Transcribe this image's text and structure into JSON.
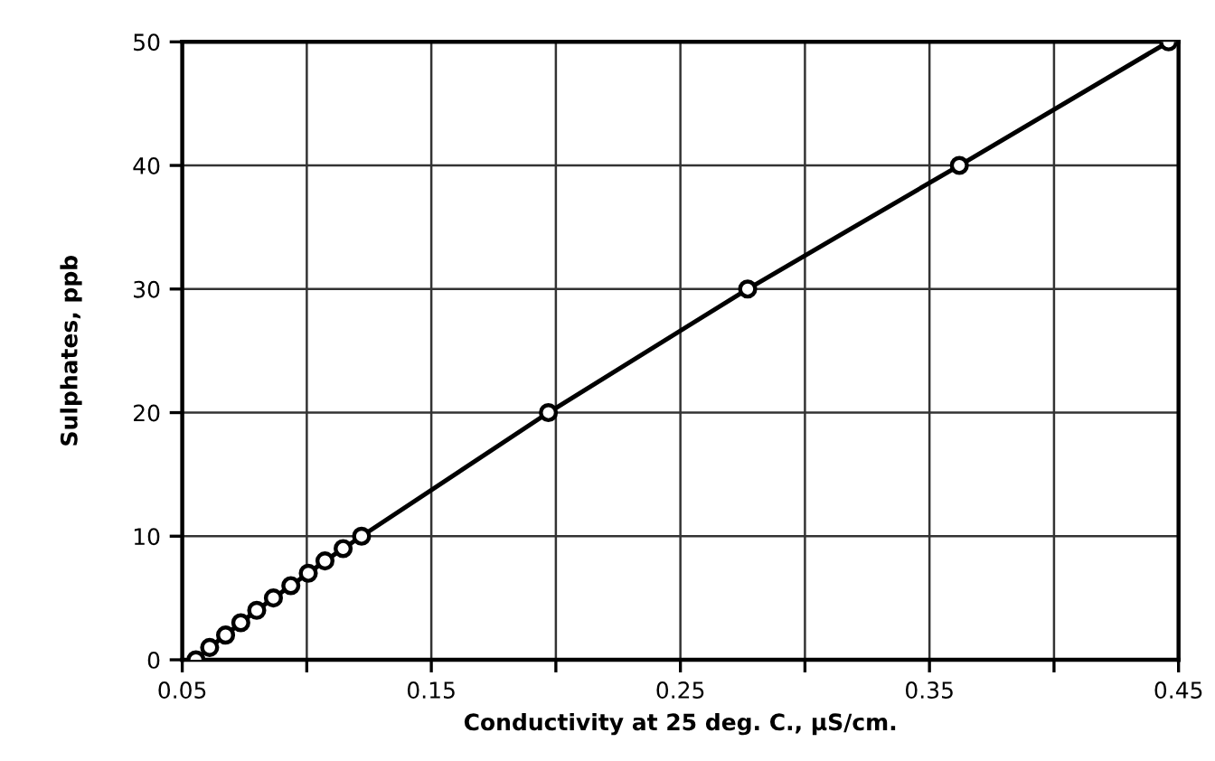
{
  "chart_data": {
    "type": "line",
    "xlabel": "Conductivity at 25 deg. C., µS/cm.",
    "ylabel": "Sulphates, ppb",
    "x": [
      0.0555,
      0.061,
      0.0674,
      0.0735,
      0.0799,
      0.0866,
      0.0936,
      0.1006,
      0.1073,
      0.1146,
      0.122,
      0.197,
      0.277,
      0.362,
      0.446
    ],
    "series": [
      {
        "color": "#000000",
        "values": [
          0,
          1,
          2,
          3,
          4,
          5,
          6,
          7,
          8,
          9,
          10,
          20,
          30,
          40,
          50
        ]
      }
    ],
    "xlim": [
      0.05,
      0.45
    ],
    "xticks": [
      0.05,
      {
        "value": 0.1,
        "label": null
      },
      0.15,
      {
        "value": 0.2,
        "label": null
      },
      0.25,
      {
        "value": 0.3,
        "label": null
      },
      0.35,
      {
        "value": 0.4,
        "label": null
      },
      0.45
    ],
    "ylim": [
      0,
      50
    ],
    "yticks": [
      0,
      10,
      20,
      30,
      40,
      50
    ],
    "grid": true,
    "marker": "circle",
    "line_style": "solid",
    "legend": false
  }
}
